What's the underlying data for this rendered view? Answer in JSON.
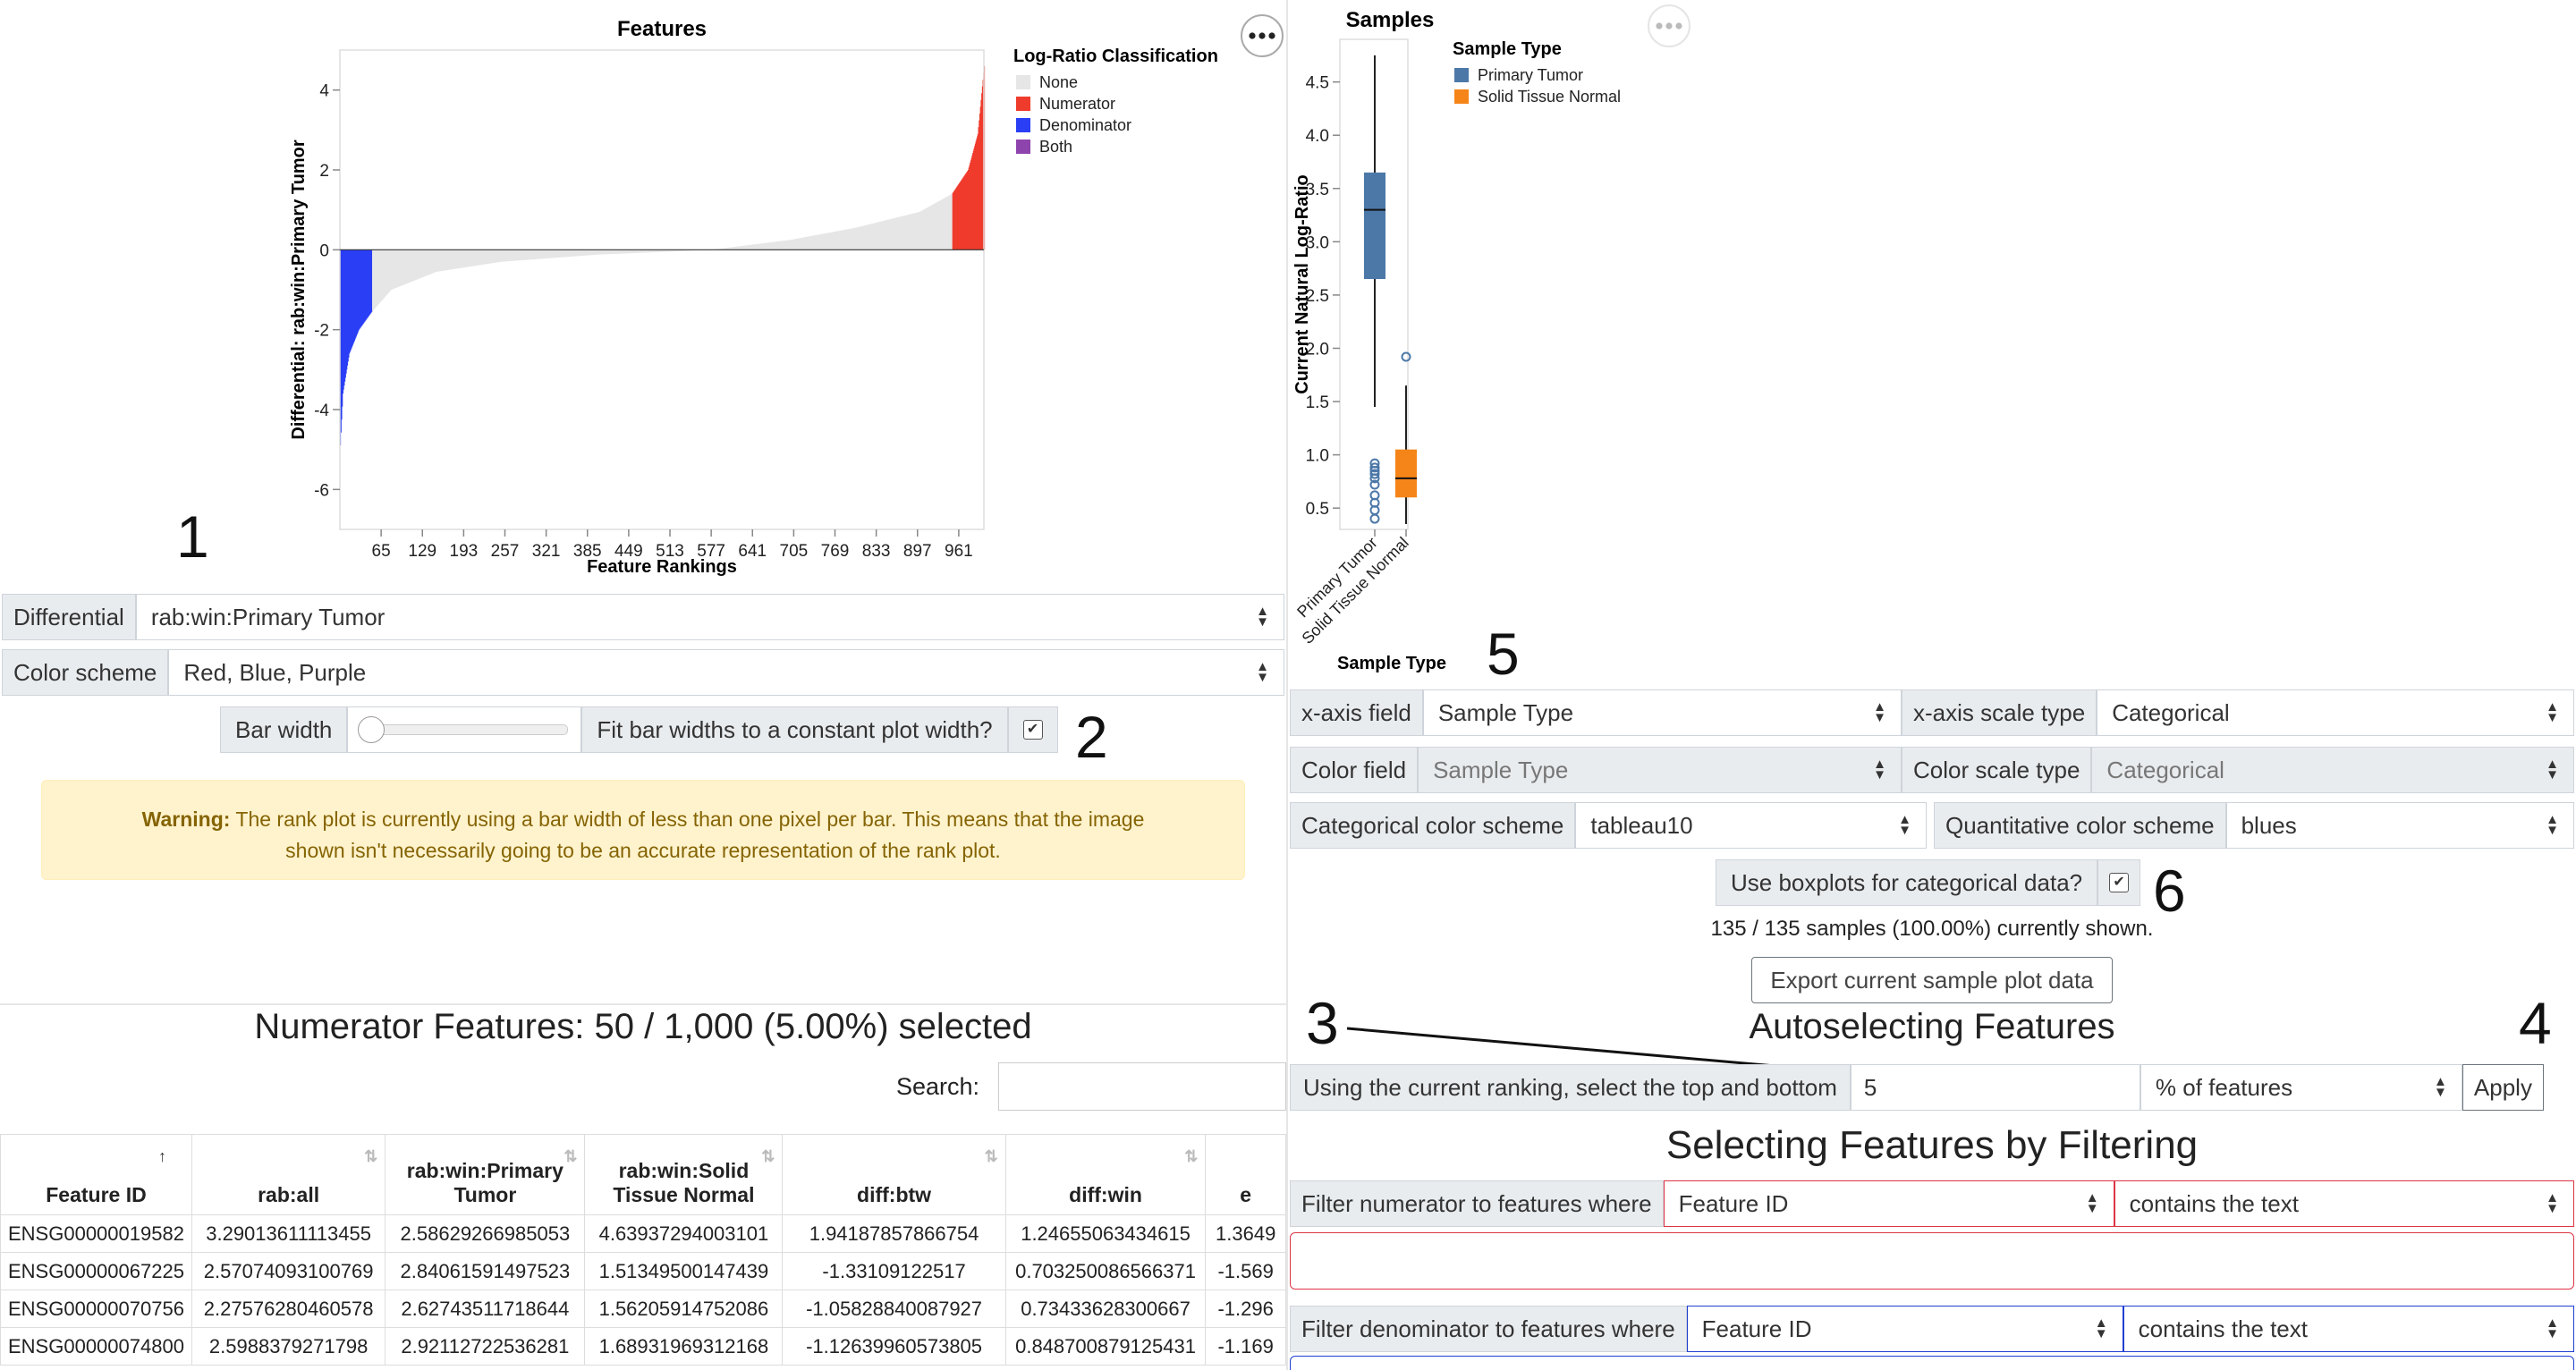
{
  "rank_plot": {
    "title": "Features",
    "ylabel": "Differential: rab:win:Primary Tumor",
    "xlabel": "Feature Rankings",
    "yticks": [
      "4",
      "2",
      "0",
      "-2",
      "-4",
      "-6"
    ],
    "xticks": [
      "65",
      "129",
      "193",
      "257",
      "321",
      "385",
      "449",
      "513",
      "577",
      "641",
      "705",
      "769",
      "833",
      "897",
      "961"
    ],
    "legend_title": "Log-Ratio Classification",
    "legend": [
      {
        "label": "None",
        "color": "#e6e6e6"
      },
      {
        "label": "Numerator",
        "color": "#ef3b2c"
      },
      {
        "label": "Denominator",
        "color": "#2a3ff5"
      },
      {
        "label": "Both",
        "color": "#8e44ad"
      }
    ],
    "menu_icon": "ellipsis-icon"
  },
  "chart_data": [
    {
      "type": "bar",
      "title": "Features",
      "xlabel": "Feature Rankings",
      "ylabel": "Differential: rab:win:Primary Tumor",
      "n_features": 1000,
      "ylim": [
        -7,
        5
      ],
      "profile": {
        "rank": [
          1,
          5,
          15,
          30,
          50,
          80,
          150,
          250,
          400,
          577,
          700,
          800,
          900,
          950,
          975,
          990,
          1000
        ],
        "value": [
          -4.9,
          -3.6,
          -2.6,
          -2.0,
          -1.55,
          -1.0,
          -0.55,
          -0.3,
          -0.12,
          0.0,
          0.25,
          0.55,
          0.95,
          1.4,
          2.0,
          2.9,
          4.6
        ]
      },
      "denominator_count": 50,
      "numerator_count": 50
    },
    {
      "type": "box",
      "title": "Samples",
      "xlabel": "Sample Type",
      "ylabel": "Current Natural Log-Ratio",
      "ylim": [
        0.3,
        4.9
      ],
      "yticks": [
        "0.5",
        "1.0",
        "1.5",
        "2.0",
        "2.5",
        "3.0",
        "3.5",
        "4.0",
        "4.5"
      ],
      "categories": [
        "Primary Tumor",
        "Solid Tissue Normal"
      ],
      "boxes": [
        {
          "name": "Primary Tumor",
          "min": 1.45,
          "q1": 2.65,
          "median": 3.3,
          "q3": 3.65,
          "max": 4.75,
          "outliers": [
            0.92,
            0.88,
            0.85,
            0.82,
            0.78,
            0.72,
            0.62,
            0.55,
            0.48,
            0.4
          ],
          "color": "#4c78a8"
        },
        {
          "name": "Solid Tissue Normal",
          "min": 0.35,
          "q1": 0.6,
          "median": 0.78,
          "q3": 1.05,
          "max": 1.65,
          "outliers": [
            1.92
          ],
          "color": "#f58518"
        }
      ],
      "legend_title": "Sample Type",
      "legend": [
        {
          "label": "Primary Tumor",
          "color": "#4c78a8"
        },
        {
          "label": "Solid Tissue Normal",
          "color": "#f58518"
        }
      ]
    }
  ],
  "controls": {
    "differential_label": "Differential",
    "differential_value": "rab:win:Primary Tumor",
    "color_scheme_label": "Color scheme",
    "color_scheme_value": "Red, Blue, Purple",
    "bar_width_label": "Bar width",
    "bar_width_level": 0.0,
    "fit_label": "Fit bar widths to a constant plot width?",
    "fit_checked": "✔",
    "warning_bold": "Warning:",
    "warning_line1": "The rank plot is currently using a bar width of less than one pixel per bar. This means that the image",
    "warning_line2": "shown isn't necessarily going to be an accurate representation of the rank plot."
  },
  "numbers": {
    "n1": "1",
    "n2": "2",
    "n3": "3",
    "n4": "4",
    "n5": "5",
    "n6": "6"
  },
  "features_table": {
    "heading": "Numerator Features: 50 / 1,000 (5.00%) selected",
    "search_label": "Search:",
    "search_value": "",
    "columns": [
      "Feature ID",
      "rab:all",
      "rab:win:Primary Tumor",
      "rab:win:Solid Tissue Normal",
      "diff:btw",
      "diff:win",
      "e"
    ],
    "rows": [
      [
        "ENSG00000019582",
        "3.29013611113455",
        "2.58629266985053",
        "4.63937294003101",
        "1.94187857866754",
        "1.24655063434615",
        "1.3649"
      ],
      [
        "ENSG00000067225",
        "2.57074093100769",
        "2.84061591497523",
        "1.51349500147439",
        "-1.33109122517",
        "0.703250086566371",
        "-1.569"
      ],
      [
        "ENSG00000070756",
        "2.27576280460578",
        "2.62743511718644",
        "1.56205914752086",
        "-1.05828840087927",
        "0.73433628300667",
        "-1.296"
      ],
      [
        "ENSG00000074800",
        "2.5988379271798",
        "2.92112722536281",
        "1.68931969312168",
        "-1.12639960573805",
        "0.848700879125431",
        "-1.169"
      ]
    ]
  },
  "sample_controls": {
    "xaxis_field_label": "x-axis field",
    "xaxis_field_value": "Sample Type",
    "xaxis_scale_label": "x-axis scale type",
    "xaxis_scale_value": "Categorical",
    "color_field_label": "Color field",
    "color_field_value": "Sample Type",
    "color_scale_label": "Color scale type",
    "color_scale_value": "Categorical",
    "cat_scheme_label": "Categorical color scheme",
    "cat_scheme_value": "tableau10",
    "quant_scheme_label": "Quantitative color scheme",
    "quant_scheme_value": "blues",
    "boxplot_label": "Use boxplots for categorical data?",
    "boxplot_checked": "✔",
    "samples_shown": "135 / 135 samples (100.00%) currently shown.",
    "export_label": "Export current sample plot data"
  },
  "autoselect": {
    "heading": "Autoselecting Features",
    "using_label": "Using the current ranking, select the top and bottom",
    "value": "5",
    "unit": "% of features",
    "apply_label": "Apply"
  },
  "filtering": {
    "heading": "Selecting Features by Filtering",
    "num_label": "Filter numerator to features where",
    "num_field": "Feature ID",
    "num_op": "contains the text",
    "num_text": "",
    "den_label": "Filter denominator to features where",
    "den_field": "Feature ID",
    "den_op": "contains the text"
  }
}
